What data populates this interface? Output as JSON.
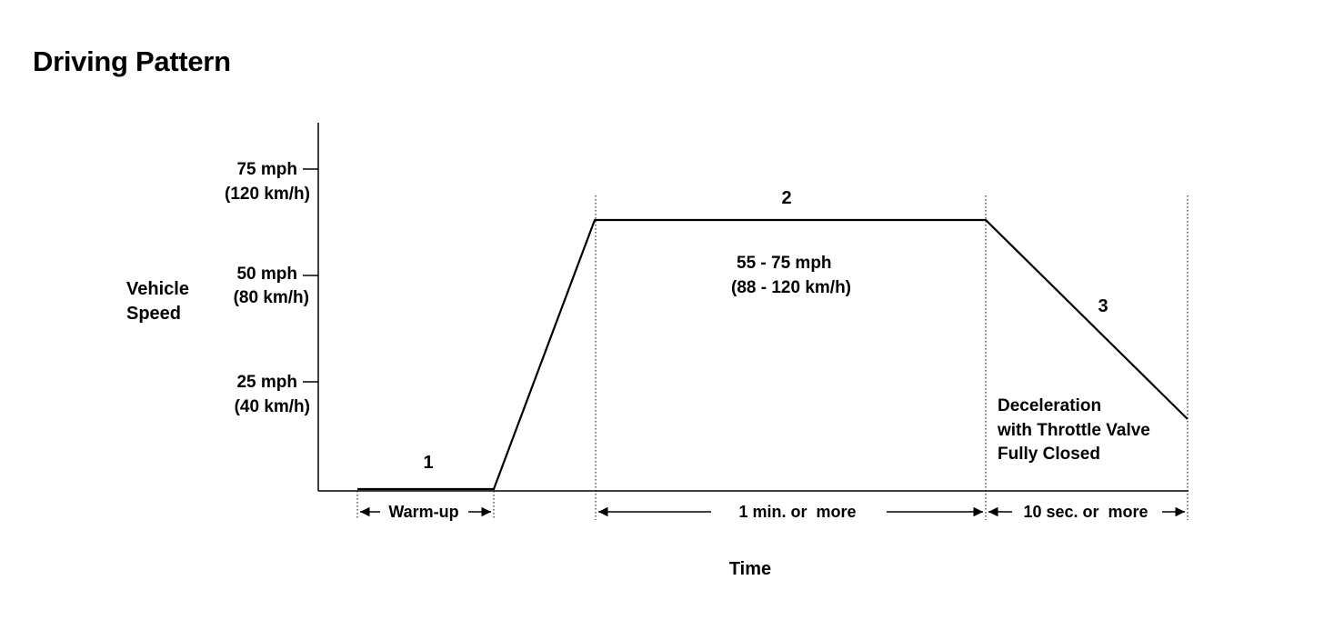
{
  "title": "Driving Pattern",
  "colors": {
    "line": "#000000",
    "background": "#ffffff"
  },
  "y_axis": {
    "label_line1": "Vehicle",
    "label_line2": "Speed",
    "ticks": [
      {
        "mph": "75 mph",
        "kmh": "(120 km/h)"
      },
      {
        "mph": "50 mph",
        "kmh": "(80 km/h)"
      },
      {
        "mph": "25 mph",
        "kmh": "(40 km/h)"
      }
    ]
  },
  "x_axis": {
    "label": "Time"
  },
  "phases": {
    "phase1": {
      "number": "1",
      "duration_label": "Warm-up"
    },
    "phase2": {
      "number": "2",
      "speed_line1": "55 - 75 mph",
      "speed_line2": "(88 - 120 km/h)",
      "duration_label": "1 min. or  more"
    },
    "phase3": {
      "number": "3",
      "note_line1": "Deceleration",
      "note_line2": "with Throttle Valve",
      "note_line3": "Fully Closed",
      "duration_label": "10 sec. or  more"
    }
  }
}
